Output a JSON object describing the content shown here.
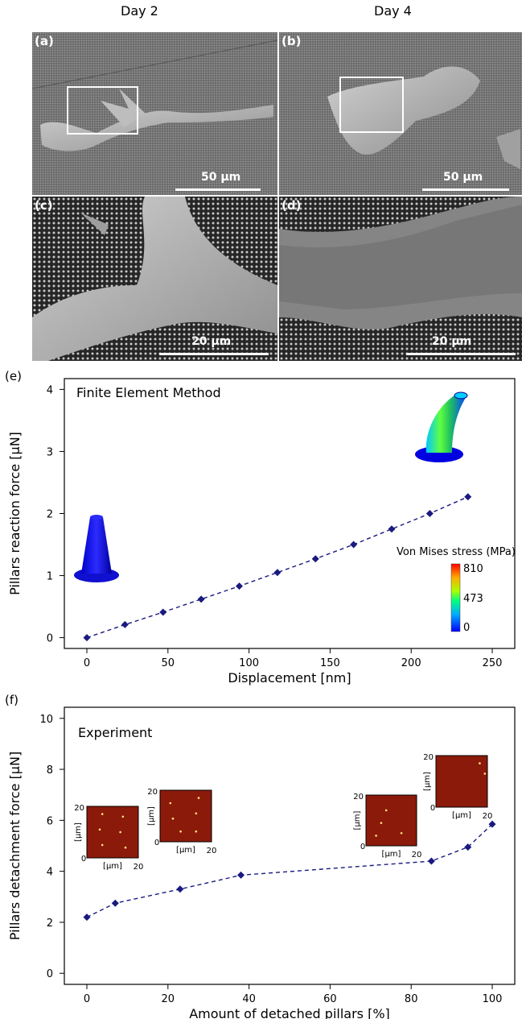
{
  "columns": [
    "Day 2",
    "Day 4"
  ],
  "sem_panels": [
    {
      "label": "(a)",
      "scale": "50 µm"
    },
    {
      "label": "(b)",
      "scale": "50 µm"
    },
    {
      "label": "(c)",
      "scale": "20 µm"
    },
    {
      "label": "(d)",
      "scale": "20 µm"
    }
  ],
  "panel_e": {
    "label": "(e)",
    "annotation": "Finite Element Method",
    "colorbar": {
      "title": "Von Mises stress (MPa)",
      "ticks": [
        "810",
        "473",
        "0"
      ]
    }
  },
  "panel_f": {
    "label": "(f)",
    "annotation": "Experiment",
    "inset": {
      "unit_label": "[µm]",
      "ticks": [
        "0",
        "20"
      ]
    }
  },
  "chart_data": [
    {
      "type": "line",
      "title": "",
      "xlabel": "Displacement [nm]",
      "ylabel": "Pillars reaction force [µN]",
      "xlim": [
        0,
        250
      ],
      "ylim": [
        0,
        4
      ],
      "xticks": [
        "0",
        "50",
        "100",
        "150",
        "200",
        "250"
      ],
      "yticks": [
        "0",
        "1",
        "2",
        "3",
        "4"
      ],
      "series": [
        {
          "x": [
            0,
            23.5,
            47,
            70.5,
            94,
            117.5,
            141,
            164.5,
            188,
            211.5,
            235
          ],
          "values": [
            0,
            0.21,
            0.41,
            0.62,
            0.83,
            1.05,
            1.27,
            1.5,
            1.75,
            2.0,
            2.27
          ]
        }
      ],
      "marker": "diamond",
      "line_style": "dashed",
      "color": "#1a1a80"
    },
    {
      "type": "line",
      "title": "",
      "xlabel": "Amount of detached pillars [%]",
      "ylabel": "Pillars detachment force [µN]",
      "xlim": [
        0,
        100
      ],
      "ylim": [
        0,
        10
      ],
      "xticks": [
        "0",
        "20",
        "40",
        "60",
        "80",
        "100"
      ],
      "yticks": [
        "0",
        "2",
        "4",
        "6",
        "8",
        "10"
      ],
      "series": [
        {
          "x": [
            0,
            7,
            23,
            38,
            85,
            94,
            100
          ],
          "values": [
            2.2,
            2.75,
            3.3,
            3.85,
            4.4,
            4.95,
            5.85
          ]
        }
      ],
      "marker": "diamond",
      "line_style": "dashed",
      "color": "#1a1a80"
    }
  ]
}
